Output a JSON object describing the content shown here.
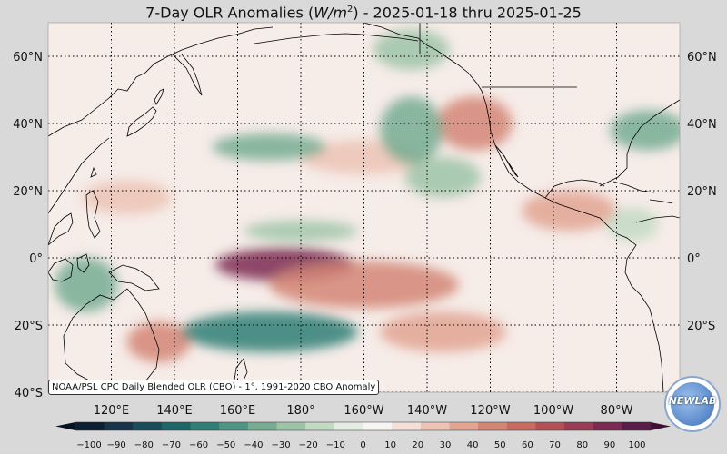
{
  "title": {
    "prefix": "7-Day OLR Anomalies (",
    "unit_base": "W/m",
    "unit_exp": "2",
    "suffix": ") - 2025-01-18 thru 2025-01-25"
  },
  "map": {
    "projection": "equirectangular",
    "lon_range_deg": [
      100,
      300
    ],
    "lat_range_deg": [
      -40,
      70
    ],
    "grid_lines": "dotted",
    "lat_labels": [
      "60°N",
      "40°N",
      "20°N",
      "0°",
      "20°S",
      "40°S"
    ],
    "lat_values": [
      60,
      40,
      20,
      0,
      -20,
      -40
    ],
    "lon_labels": [
      "120°E",
      "140°E",
      "160°E",
      "180°",
      "160°W",
      "140°W",
      "120°W",
      "100°W",
      "80°W"
    ],
    "lon_values": [
      120,
      140,
      160,
      180,
      200,
      220,
      240,
      260,
      280
    ]
  },
  "anomaly_field": {
    "description_units": "W/m2",
    "positive_regions": [
      {
        "lon": 175,
        "lat": -2,
        "rx": 22,
        "ry": 5,
        "value": 80
      },
      {
        "lon": 200,
        "lat": -8,
        "rx": 30,
        "ry": 7,
        "value": 40
      },
      {
        "lon": 225,
        "lat": -22,
        "rx": 20,
        "ry": 6,
        "value": 35
      },
      {
        "lon": 235,
        "lat": 40,
        "rx": 12,
        "ry": 8,
        "value": 40
      },
      {
        "lon": 265,
        "lat": 14,
        "rx": 15,
        "ry": 6,
        "value": 30
      },
      {
        "lon": 135,
        "lat": -25,
        "rx": 10,
        "ry": 6,
        "value": 40
      },
      {
        "lon": 125,
        "lat": 18,
        "rx": 14,
        "ry": 5,
        "value": 25
      },
      {
        "lon": 200,
        "lat": 30,
        "rx": 20,
        "ry": 5,
        "value": 25
      }
    ],
    "negative_regions": [
      {
        "lon": 170,
        "lat": -22,
        "rx": 28,
        "ry": 6,
        "value": -60
      },
      {
        "lon": 112,
        "lat": -8,
        "rx": 10,
        "ry": 8,
        "value": -40
      },
      {
        "lon": 170,
        "lat": 33,
        "rx": 18,
        "ry": 4,
        "value": -40
      },
      {
        "lon": 215,
        "lat": 38,
        "rx": 10,
        "ry": 10,
        "value": -35
      },
      {
        "lon": 225,
        "lat": 24,
        "rx": 12,
        "ry": 6,
        "value": -30
      },
      {
        "lon": 290,
        "lat": 38,
        "rx": 12,
        "ry": 6,
        "value": -40
      },
      {
        "lon": 180,
        "lat": 8,
        "rx": 18,
        "ry": 3,
        "value": -25
      },
      {
        "lon": 215,
        "lat": 62,
        "rx": 12,
        "ry": 6,
        "value": -25
      },
      {
        "lon": 285,
        "lat": 10,
        "rx": 8,
        "ry": 5,
        "value": -20
      }
    ]
  },
  "colorbar": {
    "min": -100,
    "max": 100,
    "step": 10,
    "tick_labels": [
      "−100",
      "−90",
      "−80",
      "−70",
      "−60",
      "−50",
      "−40",
      "−30",
      "−20",
      "−10",
      "0",
      "10",
      "20",
      "30",
      "40",
      "50",
      "60",
      "70",
      "80",
      "90",
      "100"
    ],
    "colors": [
      "#0c1f33",
      "#17344c",
      "#1a4d5c",
      "#1d6668",
      "#2f7f75",
      "#4e9683",
      "#76ad92",
      "#9dc4a8",
      "#c2dac4",
      "#e3ede2",
      "#f7f5f1",
      "#f4e0d8",
      "#ecc3b5",
      "#e2a493",
      "#d48675",
      "#c76a5f",
      "#b25056",
      "#993c55",
      "#7b2b52",
      "#5a1c48"
    ]
  },
  "source_label": "NOAA/PSL CPC Daily Blended OLR (CBO) - 1°, 1991-2020 CBO Anomaly",
  "logo": {
    "text": "NEWLAB"
  }
}
